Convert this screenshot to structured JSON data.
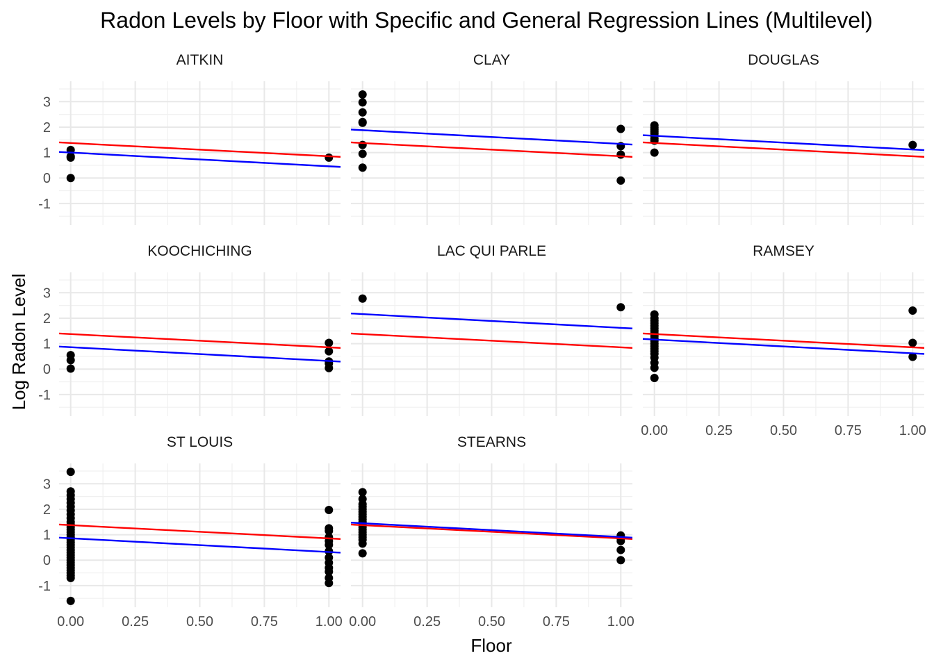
{
  "chart_data": {
    "type": "scatter",
    "title": "Radon Levels by Floor with Specific and General Regression Lines (Multilevel)",
    "xlabel": "Floor",
    "ylabel": "Log Radon Level",
    "xlim": [
      -0.045,
      1.045
    ],
    "ylim": [
      -1.85,
      3.8
    ],
    "x_ticks": [
      "0.00",
      "0.25",
      "0.50",
      "0.75",
      "1.00"
    ],
    "x_tick_values": [
      0,
      0.25,
      0.5,
      0.75,
      1
    ],
    "y_ticks": [
      "-1",
      "0",
      "1",
      "2",
      "3"
    ],
    "y_tick_values": [
      -1,
      0,
      1,
      2,
      3
    ],
    "grid": true,
    "colors": {
      "points": "#000000",
      "specific_line": "#0000ff",
      "general_line": "#ff0000"
    },
    "general_line": {
      "intercept": 1.375,
      "slope": -0.52
    },
    "panels": [
      {
        "name": "AITKIN",
        "specific_line": {
          "intercept": 1.0,
          "slope": -0.54
        },
        "points": [
          [
            0,
            1.1
          ],
          [
            0,
            0.85
          ],
          [
            0,
            0.8
          ],
          [
            0,
            0.0
          ],
          [
            1,
            0.8
          ]
        ]
      },
      {
        "name": "CLAY",
        "specific_line": {
          "intercept": 1.88,
          "slope": -0.54
        },
        "points": [
          [
            0,
            3.28
          ],
          [
            0,
            2.97
          ],
          [
            0,
            2.58
          ],
          [
            0,
            2.2
          ],
          [
            0,
            2.17
          ],
          [
            0,
            1.3
          ],
          [
            0,
            0.95
          ],
          [
            0,
            0.41
          ],
          [
            1,
            1.93
          ],
          [
            1,
            1.25
          ],
          [
            1,
            0.92
          ],
          [
            1,
            -0.1
          ]
        ]
      },
      {
        "name": "DOUGLAS",
        "specific_line": {
          "intercept": 1.66,
          "slope": -0.54
        },
        "points": [
          [
            0,
            2.07
          ],
          [
            0,
            1.97
          ],
          [
            0,
            1.9
          ],
          [
            0,
            1.82
          ],
          [
            0,
            1.75
          ],
          [
            0,
            1.66
          ],
          [
            0,
            1.55
          ],
          [
            0,
            1.47
          ],
          [
            0,
            1.0
          ],
          [
            1,
            1.3
          ]
        ]
      },
      {
        "name": "KOOCHICHING",
        "specific_line": {
          "intercept": 0.86,
          "slope": -0.54
        },
        "points": [
          [
            0,
            0.55
          ],
          [
            0,
            0.35
          ],
          [
            0,
            0.02
          ],
          [
            1,
            1.03
          ],
          [
            1,
            0.7
          ],
          [
            1,
            0.3
          ],
          [
            1,
            0.22
          ],
          [
            1,
            0.04
          ]
        ]
      },
      {
        "name": "LAC QUI PARLE",
        "specific_line": {
          "intercept": 2.16,
          "slope": -0.54
        },
        "points": [
          [
            0,
            2.77
          ],
          [
            1,
            2.43
          ]
        ]
      },
      {
        "name": "RAMSEY",
        "specific_line": {
          "intercept": 1.16,
          "slope": -0.54
        },
        "points": [
          [
            0,
            2.15
          ],
          [
            0,
            2.0
          ],
          [
            0,
            1.9
          ],
          [
            0,
            1.8
          ],
          [
            0,
            1.7
          ],
          [
            0,
            1.6
          ],
          [
            0,
            1.5
          ],
          [
            0,
            1.4
          ],
          [
            0,
            1.3
          ],
          [
            0,
            1.2
          ],
          [
            0,
            1.1
          ],
          [
            0,
            1.0
          ],
          [
            0,
            0.9
          ],
          [
            0,
            0.8
          ],
          [
            0,
            0.7
          ],
          [
            0,
            0.6
          ],
          [
            0,
            0.45
          ],
          [
            0,
            0.25
          ],
          [
            0,
            0.05
          ],
          [
            0,
            -0.35
          ],
          [
            1,
            2.3
          ],
          [
            1,
            1.03
          ],
          [
            1,
            0.48
          ]
        ]
      },
      {
        "name": "ST LOUIS",
        "specific_line": {
          "intercept": 0.86,
          "slope": -0.54
        },
        "points": [
          [
            0,
            3.47
          ],
          [
            0,
            2.7
          ],
          [
            0,
            2.55
          ],
          [
            0,
            2.4
          ],
          [
            0,
            2.25
          ],
          [
            0,
            2.1
          ],
          [
            0,
            1.95
          ],
          [
            0,
            1.8
          ],
          [
            0,
            1.65
          ],
          [
            0,
            1.5
          ],
          [
            0,
            1.4
          ],
          [
            0,
            1.3
          ],
          [
            0,
            1.2
          ],
          [
            0,
            1.1
          ],
          [
            0,
            1.0
          ],
          [
            0,
            0.9
          ],
          [
            0,
            0.8
          ],
          [
            0,
            0.7
          ],
          [
            0,
            0.6
          ],
          [
            0,
            0.5
          ],
          [
            0,
            0.4
          ],
          [
            0,
            0.3
          ],
          [
            0,
            0.2
          ],
          [
            0,
            0.1
          ],
          [
            0,
            0.0
          ],
          [
            0,
            -0.1
          ],
          [
            0,
            -0.2
          ],
          [
            0,
            -0.3
          ],
          [
            0,
            -0.4
          ],
          [
            0,
            -0.5
          ],
          [
            0,
            -0.6
          ],
          [
            0,
            -0.7
          ],
          [
            0,
            -1.6
          ],
          [
            1,
            1.97
          ],
          [
            1,
            1.25
          ],
          [
            1,
            1.15
          ],
          [
            1,
            0.9
          ],
          [
            1,
            0.75
          ],
          [
            1,
            0.6
          ],
          [
            1,
            0.35
          ],
          [
            1,
            0.1
          ],
          [
            1,
            -0.1
          ],
          [
            1,
            -0.3
          ],
          [
            1,
            -0.45
          ],
          [
            1,
            -0.7
          ],
          [
            1,
            -0.9
          ]
        ]
      },
      {
        "name": "STEARNS",
        "specific_line": {
          "intercept": 1.45,
          "slope": -0.54
        },
        "points": [
          [
            0,
            2.67
          ],
          [
            0,
            2.4
          ],
          [
            0,
            2.2
          ],
          [
            0,
            2.1
          ],
          [
            0,
            2.0
          ],
          [
            0,
            1.9
          ],
          [
            0,
            1.8
          ],
          [
            0,
            1.7
          ],
          [
            0,
            1.6
          ],
          [
            0,
            1.5
          ],
          [
            0,
            1.4
          ],
          [
            0,
            1.3
          ],
          [
            0,
            1.2
          ],
          [
            0,
            1.1
          ],
          [
            0,
            1.0
          ],
          [
            0,
            0.9
          ],
          [
            0,
            0.8
          ],
          [
            0,
            0.65
          ],
          [
            0,
            0.27
          ],
          [
            1,
            0.97
          ],
          [
            1,
            0.85
          ],
          [
            1,
            0.75
          ],
          [
            1,
            0.4
          ],
          [
            1,
            0.0
          ]
        ]
      }
    ]
  }
}
